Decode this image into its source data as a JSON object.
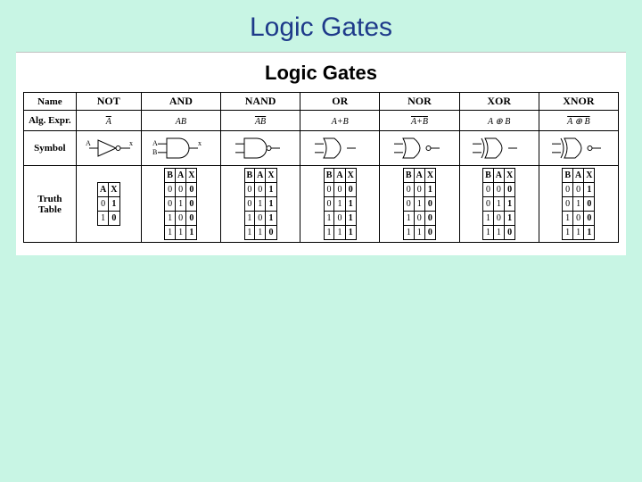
{
  "slide": {
    "title": "Logic Gates"
  },
  "figure": {
    "title": "Logic Gates",
    "background_color": "#c8f5e4",
    "panel_background": "#ffffff",
    "border_color": "#000000",
    "row_labels": {
      "name": "Name",
      "expr": "Alg. Expr.",
      "symbol": "Symbol",
      "truth": "Truth\nTable"
    },
    "symbol_style": {
      "stroke": "#000000",
      "fill": "none",
      "stroke_width": 1
    },
    "gates": [
      {
        "name": "NOT",
        "expr_html": "<span class='overline'>A</span>",
        "symbol": "not",
        "inputs": [
          "A"
        ],
        "output": "X",
        "truth": {
          "cols": [
            "A",
            "X"
          ],
          "rows": [
            [
              "0",
              "1"
            ],
            [
              "1",
              "0"
            ]
          ]
        }
      },
      {
        "name": "AND",
        "expr_html": "<span style='font-style:italic'>AB</span>",
        "symbol": "and",
        "inputs": [
          "A",
          "B"
        ],
        "output": "X",
        "truth": {
          "cols": [
            "B",
            "A",
            "X"
          ],
          "rows": [
            [
              "0",
              "0",
              "0"
            ],
            [
              "0",
              "1",
              "0"
            ],
            [
              "1",
              "0",
              "0"
            ],
            [
              "1",
              "1",
              "1"
            ]
          ]
        }
      },
      {
        "name": "NAND",
        "expr_html": "<span class='overline' style='font-style:italic'>AB</span>",
        "symbol": "nand",
        "inputs": [
          "A",
          "B"
        ],
        "output": "X",
        "truth": {
          "cols": [
            "B",
            "A",
            "X"
          ],
          "rows": [
            [
              "0",
              "0",
              "1"
            ],
            [
              "0",
              "1",
              "1"
            ],
            [
              "1",
              "0",
              "1"
            ],
            [
              "1",
              "1",
              "0"
            ]
          ]
        }
      },
      {
        "name": "OR",
        "expr_html": "<span style='font-style:italic'>A</span>+<span style='font-style:italic'>B</span>",
        "symbol": "or",
        "inputs": [
          "A",
          "B"
        ],
        "output": "X",
        "truth": {
          "cols": [
            "B",
            "A",
            "X"
          ],
          "rows": [
            [
              "0",
              "0",
              "0"
            ],
            [
              "0",
              "1",
              "1"
            ],
            [
              "1",
              "0",
              "1"
            ],
            [
              "1",
              "1",
              "1"
            ]
          ]
        }
      },
      {
        "name": "NOR",
        "expr_html": "<span class='overline'><span style='font-style:italic'>A</span>+<span style='font-style:italic'>B</span></span>",
        "symbol": "nor",
        "inputs": [
          "A",
          "B"
        ],
        "output": "X",
        "truth": {
          "cols": [
            "B",
            "A",
            "X"
          ],
          "rows": [
            [
              "0",
              "0",
              "1"
            ],
            [
              "0",
              "1",
              "0"
            ],
            [
              "1",
              "0",
              "0"
            ],
            [
              "1",
              "1",
              "0"
            ]
          ]
        }
      },
      {
        "name": "XOR",
        "expr_html": "<span style='font-style:italic'>A</span> &oplus; <span style='font-style:italic'>B</span>",
        "symbol": "xor",
        "inputs": [
          "A",
          "B"
        ],
        "output": "X",
        "truth": {
          "cols": [
            "B",
            "A",
            "X"
          ],
          "rows": [
            [
              "0",
              "0",
              "0"
            ],
            [
              "0",
              "1",
              "1"
            ],
            [
              "1",
              "0",
              "1"
            ],
            [
              "1",
              "1",
              "0"
            ]
          ]
        }
      },
      {
        "name": "XNOR",
        "expr_html": "<span class='overline'><span style='font-style:italic'>A</span> &oplus; <span style='font-style:italic'>B</span></span>",
        "symbol": "xnor",
        "inputs": [
          "A",
          "B"
        ],
        "output": "X",
        "truth": {
          "cols": [
            "B",
            "A",
            "X"
          ],
          "rows": [
            [
              "0",
              "0",
              "1"
            ],
            [
              "0",
              "1",
              "0"
            ],
            [
              "1",
              "0",
              "0"
            ],
            [
              "1",
              "1",
              "1"
            ]
          ]
        }
      }
    ]
  }
}
